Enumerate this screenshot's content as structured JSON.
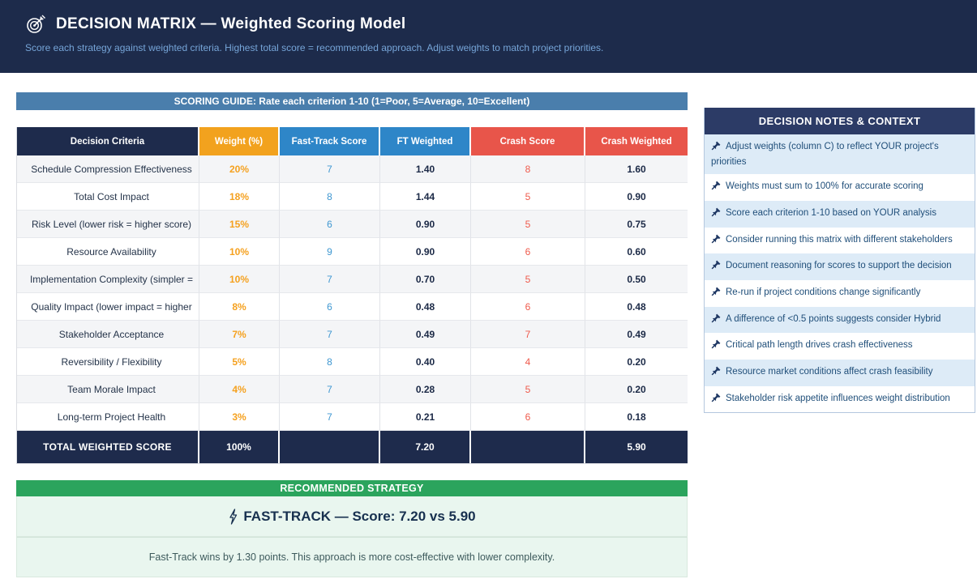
{
  "header": {
    "icon": "target-dart",
    "title": "DECISION MATRIX — Weighted Scoring Model",
    "subtitle": "Score each strategy against weighted criteria. Highest total score = recommended approach. Adjust weights to match project priorities."
  },
  "scoring_guide": "SCORING GUIDE: Rate each criterion 1-10 (1=Poor, 5=Average, 10=Excellent)",
  "matrix": {
    "columns": [
      "Decision Criteria",
      "Weight (%)",
      "Fast-Track Score",
      "FT Weighted",
      "Crash Score",
      "Crash Weighted"
    ],
    "rows": [
      {
        "criteria": "Schedule Compression Effectiveness",
        "weight": "20%",
        "ft_score": "7",
        "ft_weighted": "1.40",
        "crash_score": "8",
        "crash_weighted": "1.60"
      },
      {
        "criteria": "Total Cost Impact",
        "weight": "18%",
        "ft_score": "8",
        "ft_weighted": "1.44",
        "crash_score": "5",
        "crash_weighted": "0.90"
      },
      {
        "criteria": "Risk Level (lower risk = higher score)",
        "weight": "15%",
        "ft_score": "6",
        "ft_weighted": "0.90",
        "crash_score": "5",
        "crash_weighted": "0.75"
      },
      {
        "criteria": "Resource Availability",
        "weight": "10%",
        "ft_score": "9",
        "ft_weighted": "0.90",
        "crash_score": "6",
        "crash_weighted": "0.60"
      },
      {
        "criteria": "Implementation Complexity (simpler =",
        "weight": "10%",
        "ft_score": "7",
        "ft_weighted": "0.70",
        "crash_score": "5",
        "crash_weighted": "0.50"
      },
      {
        "criteria": "Quality Impact (lower impact = higher",
        "weight": "8%",
        "ft_score": "6",
        "ft_weighted": "0.48",
        "crash_score": "6",
        "crash_weighted": "0.48"
      },
      {
        "criteria": "Stakeholder Acceptance",
        "weight": "7%",
        "ft_score": "7",
        "ft_weighted": "0.49",
        "crash_score": "7",
        "crash_weighted": "0.49"
      },
      {
        "criteria": "Reversibility / Flexibility",
        "weight": "5%",
        "ft_score": "8",
        "ft_weighted": "0.40",
        "crash_score": "4",
        "crash_weighted": "0.20"
      },
      {
        "criteria": "Team Morale Impact",
        "weight": "4%",
        "ft_score": "7",
        "ft_weighted": "0.28",
        "crash_score": "5",
        "crash_weighted": "0.20"
      },
      {
        "criteria": "Long-term Project Health",
        "weight": "3%",
        "ft_score": "7",
        "ft_weighted": "0.21",
        "crash_score": "6",
        "crash_weighted": "0.18"
      }
    ],
    "total": {
      "label": "TOTAL WEIGHTED SCORE",
      "weight": "100%",
      "ft_weighted": "7.20",
      "crash_weighted": "5.90"
    }
  },
  "notes_panel": {
    "title": "DECISION NOTES & CONTEXT",
    "items": [
      "Adjust weights (column C) to reflect YOUR project's priorities",
      "Weights must sum to 100% for accurate scoring",
      "Score each criterion 1-10 based on YOUR analysis",
      "Consider running this matrix with different stakeholders",
      "Document reasoning for scores to support the decision",
      "Re-run if project conditions change significantly",
      "A difference of <0.5 points suggests consider Hybrid",
      "Critical path length drives crash effectiveness",
      "Resource market conditions affect crash feasibility",
      "Stakeholder risk appetite influences weight distribution"
    ]
  },
  "recommendation": {
    "banner": "RECOMMENDED STRATEGY",
    "headline": "FAST-TRACK — Score: 7.20 vs 5.90",
    "detail": "Fast-Track wins by 1.30 points. This approach is more cost-effective with lower complexity."
  },
  "colors": {
    "header_navy": "#1D2B4B",
    "table_navy": "#1E2B4C",
    "weight_orange": "#F2A21E",
    "fasttrack_blue": "#2E86C8",
    "crash_red": "#E8554A",
    "guide_steel_blue": "#4A7EAC",
    "notes_navy": "#2C3B66",
    "notes_light_blue": "#DDEBF7",
    "note_text_blue": "#1F4E79",
    "recommend_green": "#2BA45D",
    "mint_bg": "#E9F6EF",
    "subtitle_blue": "#76A5D8"
  }
}
